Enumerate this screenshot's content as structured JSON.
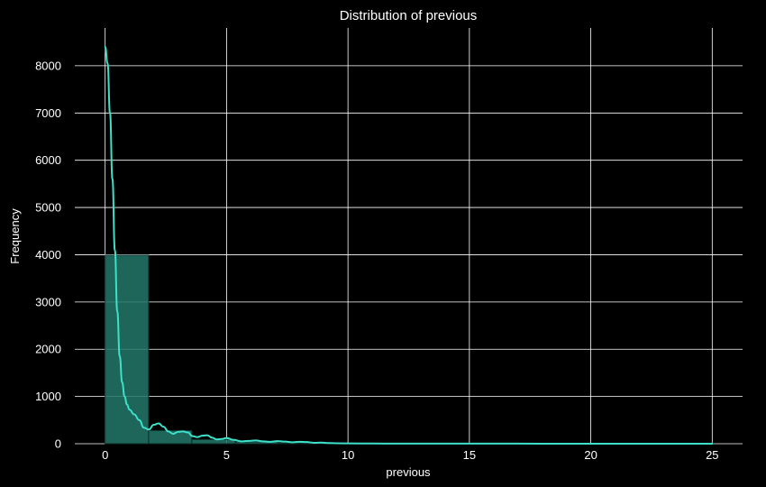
{
  "chart_data": {
    "type": "histogram",
    "title": "Distribution of previous",
    "xlabel": "previous",
    "ylabel": "Frequency",
    "xlim": [
      -1.25,
      26.25
    ],
    "ylim": [
      0,
      8800
    ],
    "x_ticks": [
      0,
      5,
      10,
      15,
      20,
      25
    ],
    "x_tick_labels": [
      "0",
      "5",
      "10",
      "15",
      "20",
      "25"
    ],
    "y_ticks": [
      0,
      1000,
      2000,
      3000,
      4000,
      5000,
      6000,
      7000,
      8000
    ],
    "y_tick_labels": [
      "0",
      "1000",
      "2000",
      "3000",
      "4000",
      "5000",
      "6000",
      "7000",
      "8000"
    ],
    "grid": true,
    "bins": [
      {
        "x0": 0.0,
        "x1": 1.79,
        "count": 3990
      },
      {
        "x0": 1.79,
        "x1": 3.57,
        "count": 280
      },
      {
        "x0": 3.57,
        "x1": 5.36,
        "count": 90
      },
      {
        "x0": 5.36,
        "x1": 7.14,
        "count": 40
      },
      {
        "x0": 7.14,
        "x1": 8.93,
        "count": 20
      },
      {
        "x0": 8.93,
        "x1": 10.71,
        "count": 8
      },
      {
        "x0": 10.71,
        "x1": 12.5,
        "count": 3
      },
      {
        "x0": 12.5,
        "x1": 14.29,
        "count": 2
      },
      {
        "x0": 14.29,
        "x1": 16.07,
        "count": 1
      },
      {
        "x0": 16.07,
        "x1": 17.86,
        "count": 1
      },
      {
        "x0": 17.86,
        "x1": 19.64,
        "count": 0
      },
      {
        "x0": 19.64,
        "x1": 21.43,
        "count": 0
      },
      {
        "x0": 21.43,
        "x1": 23.21,
        "count": 0
      },
      {
        "x0": 23.21,
        "x1": 25.0,
        "count": 1
      }
    ],
    "kde": {
      "x": [
        0,
        0.1,
        0.2,
        0.3,
        0.4,
        0.5,
        0.6,
        0.7,
        0.8,
        0.9,
        1.0,
        1.2,
        1.4,
        1.6,
        1.8,
        2.0,
        2.2,
        2.4,
        2.6,
        2.8,
        3.0,
        3.2,
        3.4,
        3.6,
        3.8,
        4.0,
        4.2,
        4.4,
        4.6,
        4.8,
        5.0,
        5.3,
        5.6,
        5.9,
        6.2,
        6.5,
        6.8,
        7.1,
        7.4,
        7.7,
        8.0,
        8.3,
        8.6,
        8.9,
        9.2,
        9.6,
        10.0,
        11.0,
        12.0,
        14.0,
        16.0,
        18.0,
        20.0,
        22.0,
        25.0
      ],
      "y": [
        8400,
        8050,
        7000,
        5600,
        4100,
        2800,
        1850,
        1300,
        1000,
        830,
        720,
        620,
        500,
        340,
        300,
        400,
        430,
        360,
        260,
        210,
        250,
        260,
        240,
        160,
        140,
        170,
        180,
        130,
        90,
        100,
        120,
        80,
        50,
        60,
        70,
        50,
        40,
        55,
        45,
        30,
        40,
        35,
        20,
        25,
        15,
        10,
        6,
        4,
        3,
        2,
        2,
        1,
        1,
        1,
        1
      ]
    },
    "colors": {
      "background": "#000000",
      "bar_fill": "#23776a",
      "bar_edge": "#0d2e29",
      "kde_line": "#3de0c8",
      "grid": "#ffffff",
      "text": "#ffffff"
    }
  }
}
